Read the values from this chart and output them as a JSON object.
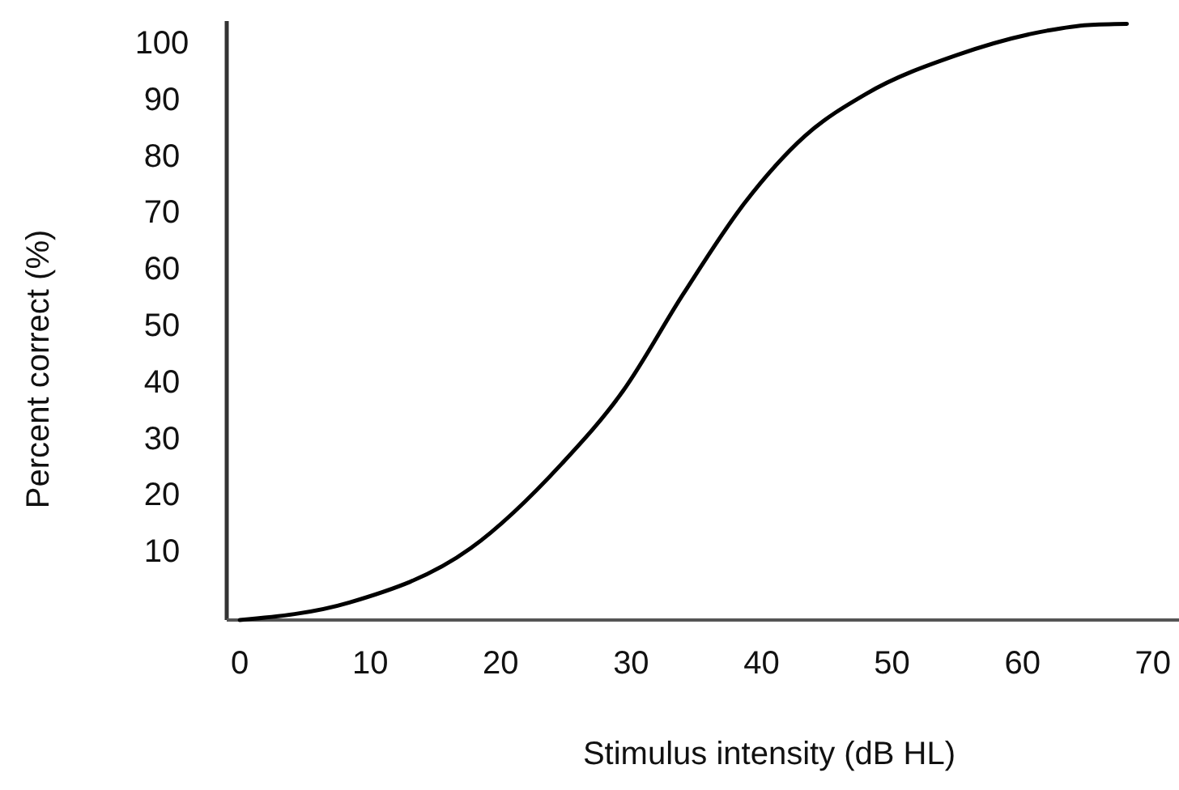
{
  "chart_data": {
    "type": "line",
    "xlabel": "Stimulus intensity (dB HL)",
    "ylabel": "Percent correct (%)",
    "xlim": [
      -1,
      72
    ],
    "ylim": [
      -2,
      104
    ],
    "xticks": [
      0,
      10,
      20,
      30,
      40,
      50,
      60,
      70
    ],
    "yticks": [
      10,
      20,
      30,
      40,
      50,
      60,
      70,
      80,
      90,
      100
    ],
    "grid": false,
    "marker": "none",
    "line_style": "solid",
    "series": [
      {
        "color": "#000000",
        "x": [
          0,
          8.4,
          17.7,
          24.7,
          29.4,
          34,
          38.7,
          43.3,
          48,
          55,
          61.9,
          65,
          68
        ],
        "values": [
          -2,
          1.1,
          10.7,
          25.7,
          38.6,
          55.7,
          71.8,
          83.6,
          91.1,
          98,
          102.3,
          103.3,
          103.5
        ]
      }
    ]
  }
}
